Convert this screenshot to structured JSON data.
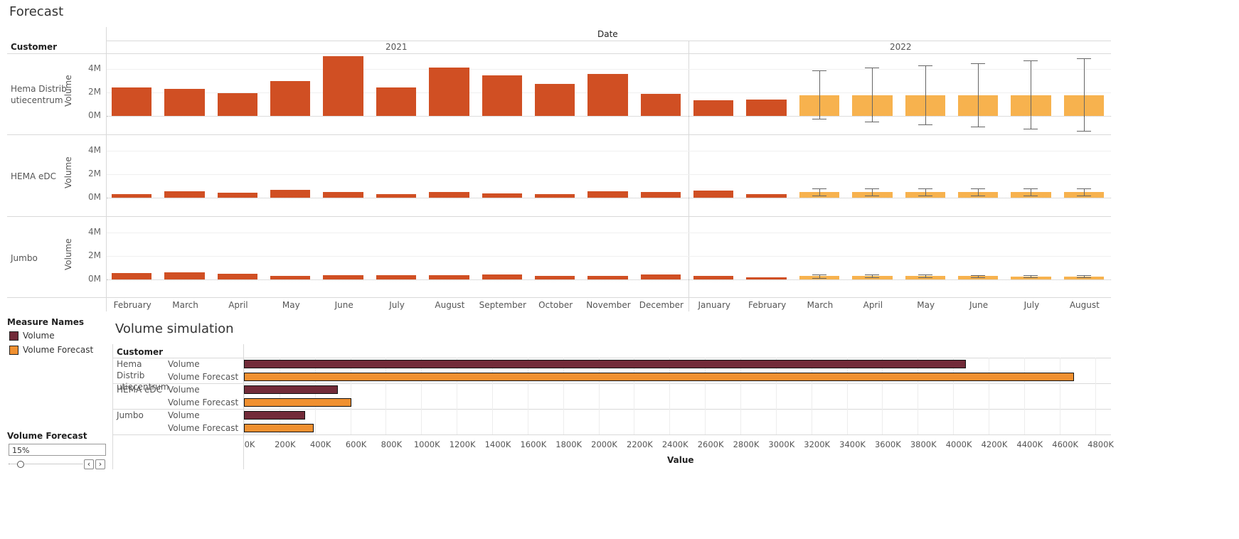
{
  "forecast": {
    "title": "Forecast",
    "date_header": "Date",
    "customer_header": "Customer",
    "y_axis_label": "Volume",
    "y_ticks": [
      "4M",
      "2M",
      "0M"
    ],
    "years": [
      "2021",
      "2022"
    ],
    "months": [
      "February",
      "March",
      "April",
      "May",
      "June",
      "July",
      "August",
      "September",
      "October",
      "November",
      "December",
      "January",
      "February",
      "March",
      "April",
      "May",
      "June",
      "July",
      "August"
    ],
    "colors": {
      "actual": "#d04f23",
      "forecast": "#f7b24e"
    },
    "chart_data": {
      "type": "bar",
      "x": [
        "2021-02",
        "2021-03",
        "2021-04",
        "2021-05",
        "2021-06",
        "2021-07",
        "2021-08",
        "2021-09",
        "2021-10",
        "2021-11",
        "2021-12",
        "2022-01",
        "2022-02",
        "2022-03",
        "2022-04",
        "2022-05",
        "2022-06",
        "2022-07",
        "2022-08"
      ],
      "ylim": [
        0,
        5000000
      ],
      "series": [
        {
          "customer": "Hema Distributiecentrum",
          "values": [
            2450000,
            2300000,
            1950000,
            2950000,
            5100000,
            2450000,
            4100000,
            3450000,
            2700000,
            3550000,
            1900000,
            1350000,
            1380000,
            1750000,
            1750000,
            1750000,
            1750000,
            1750000,
            1750000
          ],
          "forecast_start_index": 13,
          "error_low": [
            -250000,
            -500000,
            -700000,
            -900000,
            -1100000,
            -1250000
          ],
          "error_high": [
            3900000,
            4100000,
            4300000,
            4500000,
            4700000,
            4900000
          ]
        },
        {
          "customer": "HEMA eDC",
          "values": [
            290000,
            550000,
            430000,
            650000,
            480000,
            280000,
            480000,
            380000,
            330000,
            530000,
            490000,
            620000,
            330000,
            490000,
            490000,
            490000,
            490000,
            490000,
            490000
          ],
          "forecast_start_index": 13,
          "error_low": [
            200000,
            200000,
            200000,
            200000,
            200000,
            200000
          ],
          "error_high": [
            780000,
            780000,
            780000,
            780000,
            780000,
            780000
          ],
          "display_label": "HEMA eDC"
        },
        {
          "customer": "Jumbo",
          "values": [
            530000,
            590000,
            480000,
            330000,
            380000,
            380000,
            380000,
            430000,
            330000,
            280000,
            430000,
            330000,
            200000,
            300000,
            300000,
            300000,
            280000,
            270000,
            250000
          ],
          "forecast_start_index": 13,
          "error_low": [
            150000,
            160000,
            170000,
            180000,
            180000,
            180000
          ],
          "error_high": [
            430000,
            410000,
            400000,
            390000,
            380000,
            360000
          ]
        }
      ]
    },
    "row_labels": [
      "Hema Distrib\nutiecentrum",
      "HEMA eDC",
      "Jumbo"
    ]
  },
  "legend": {
    "title": "Measure Names",
    "items": [
      {
        "label": "Volume",
        "color": "#722b39"
      },
      {
        "label": "Volume Forecast",
        "color": "#f09030"
      }
    ]
  },
  "slider": {
    "title": "Volume Forecast",
    "value": "15%",
    "position": 0.15
  },
  "simulation": {
    "title": "Volume simulation",
    "customer_header": "Customer",
    "x_axis_label": "Value",
    "x_ticks": [
      "0K",
      "200K",
      "400K",
      "600K",
      "800K",
      "1000K",
      "1200K",
      "1400K",
      "1600K",
      "1800K",
      "2000K",
      "2200K",
      "2400K",
      "2600K",
      "2800K",
      "3000K",
      "3200K",
      "3400K",
      "3600K",
      "3800K",
      "4000K",
      "4200K",
      "4400K",
      "4600K",
      "4800K"
    ],
    "customers": [
      "Hema Distrib\nutiecentrum",
      "HEMA eDC",
      "Jumbo"
    ],
    "measure_labels": [
      "Volume",
      "Volume Forecast"
    ],
    "chart_data": {
      "type": "bar",
      "categories": [
        "Hema Distributiecentrum",
        "HEMA eDC",
        "Jumbo"
      ],
      "xlim": [
        0,
        4850000
      ],
      "series": [
        {
          "name": "Volume",
          "values": [
            4070000,
            530000,
            345000
          ],
          "color": "#722b39"
        },
        {
          "name": "Volume Forecast",
          "values": [
            4680000,
            605000,
            395000
          ],
          "color": "#f09030"
        }
      ]
    }
  }
}
